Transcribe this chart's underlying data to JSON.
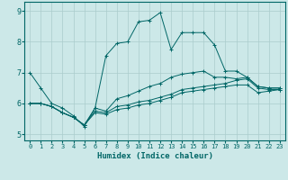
{
  "title": "",
  "xlabel": "Humidex (Indice chaleur)",
  "ylabel": "",
  "background_color": "#cce8e8",
  "grid_color": "#aacccc",
  "line_color": "#006666",
  "xlim": [
    -0.5,
    23.5
  ],
  "ylim": [
    4.8,
    9.3
  ],
  "xticks": [
    0,
    1,
    2,
    3,
    4,
    5,
    6,
    7,
    8,
    9,
    10,
    11,
    12,
    13,
    14,
    15,
    16,
    17,
    18,
    19,
    20,
    21,
    22,
    23
  ],
  "yticks": [
    5,
    6,
    7,
    8,
    9
  ],
  "series": [
    [
      7.0,
      6.5,
      6.0,
      5.85,
      5.6,
      5.25,
      5.85,
      7.55,
      7.95,
      8.0,
      8.65,
      8.7,
      8.95,
      7.75,
      8.3,
      8.3,
      8.3,
      7.9,
      7.05,
      7.05,
      6.85,
      6.55,
      6.5,
      6.5
    ],
    [
      6.0,
      6.0,
      5.9,
      5.7,
      5.55,
      5.3,
      5.85,
      5.75,
      6.15,
      6.25,
      6.4,
      6.55,
      6.65,
      6.85,
      6.95,
      7.0,
      7.05,
      6.85,
      6.85,
      6.8,
      6.85,
      6.55,
      6.5,
      6.5
    ],
    [
      6.0,
      6.0,
      5.9,
      5.7,
      5.55,
      5.3,
      5.75,
      5.7,
      5.9,
      5.95,
      6.05,
      6.1,
      6.2,
      6.3,
      6.45,
      6.5,
      6.55,
      6.6,
      6.65,
      6.75,
      6.8,
      6.5,
      6.45,
      6.45
    ],
    [
      6.0,
      6.0,
      5.9,
      5.7,
      5.55,
      5.3,
      5.7,
      5.65,
      5.8,
      5.85,
      5.95,
      6.0,
      6.1,
      6.2,
      6.35,
      6.4,
      6.45,
      6.5,
      6.55,
      6.6,
      6.6,
      6.35,
      6.4,
      6.45
    ]
  ]
}
